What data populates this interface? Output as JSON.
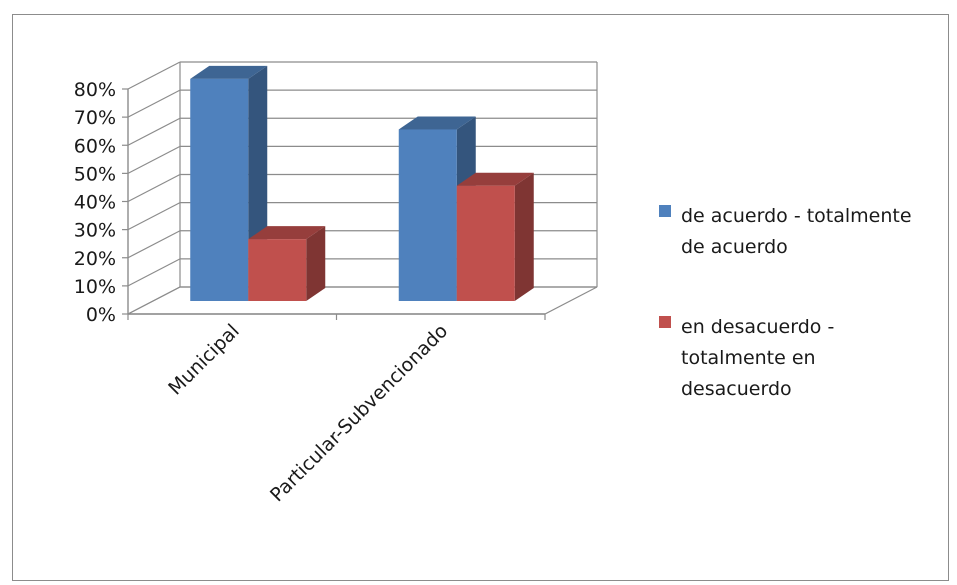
{
  "chart_data": {
    "type": "bar",
    "style": "3d-clustered-column",
    "categories": [
      "Municipal",
      "Particular-Subvencionado"
    ],
    "series": [
      {
        "name": "de acuerdo - totalmente de acuerdo",
        "color": "#4F81BD",
        "values": [
          0.79,
          0.61
        ]
      },
      {
        "name": "en desacuerdo - totalmente en desacuerdo",
        "color": "#C0504D",
        "values": [
          0.22,
          0.41
        ]
      }
    ],
    "legend_lines": [
      [
        "de acuerdo - totalmente",
        "de acuerdo"
      ],
      [
        "en desacuerdo -",
        "totalmente en",
        "desacuerdo"
      ]
    ],
    "yticks": [
      "0%",
      "10%",
      "20%",
      "30%",
      "40%",
      "50%",
      "60%",
      "70%",
      "80%"
    ],
    "ylim": [
      0,
      0.8
    ],
    "grid": true,
    "legend_position": "right"
  }
}
